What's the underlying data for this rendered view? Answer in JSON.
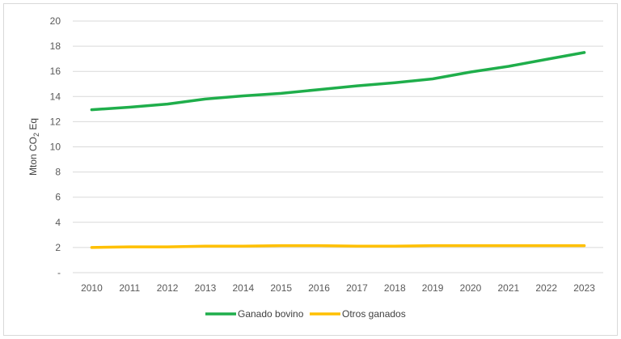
{
  "chart_data": {
    "type": "line",
    "title": "",
    "xlabel": "",
    "ylabel": "Mton CO₂ Eq",
    "ylabel_parts": {
      "base": "Mton CO",
      "subscript": "2",
      "suffix": " Eq"
    },
    "ylim": [
      0,
      20
    ],
    "ytick_values": [
      0,
      2,
      4,
      6,
      8,
      10,
      12,
      14,
      16,
      18,
      20
    ],
    "ytick_labels": [
      "-",
      "2",
      "4",
      "6",
      "8",
      "10",
      "12",
      "14",
      "16",
      "18",
      "20"
    ],
    "categories": [
      "2010",
      "2011",
      "2012",
      "2013",
      "2014",
      "2015",
      "2016",
      "2017",
      "2018",
      "2019",
      "2020",
      "2021",
      "2022",
      "2023"
    ],
    "series": [
      {
        "name": "Ganado bovino",
        "color": "#1fae4b",
        "values": [
          12.95,
          13.15,
          13.4,
          13.8,
          14.05,
          14.25,
          14.55,
          14.85,
          15.1,
          15.4,
          15.95,
          16.4,
          16.95,
          17.5
        ]
      },
      {
        "name": "Otros ganados",
        "color": "#ffc000",
        "values": [
          2.0,
          2.05,
          2.05,
          2.1,
          2.1,
          2.15,
          2.15,
          2.1,
          2.1,
          2.15,
          2.15,
          2.15,
          2.15,
          2.15
        ]
      }
    ],
    "grid": true,
    "gridline_color": "#d9d9d9",
    "legend_position": "bottom"
  }
}
